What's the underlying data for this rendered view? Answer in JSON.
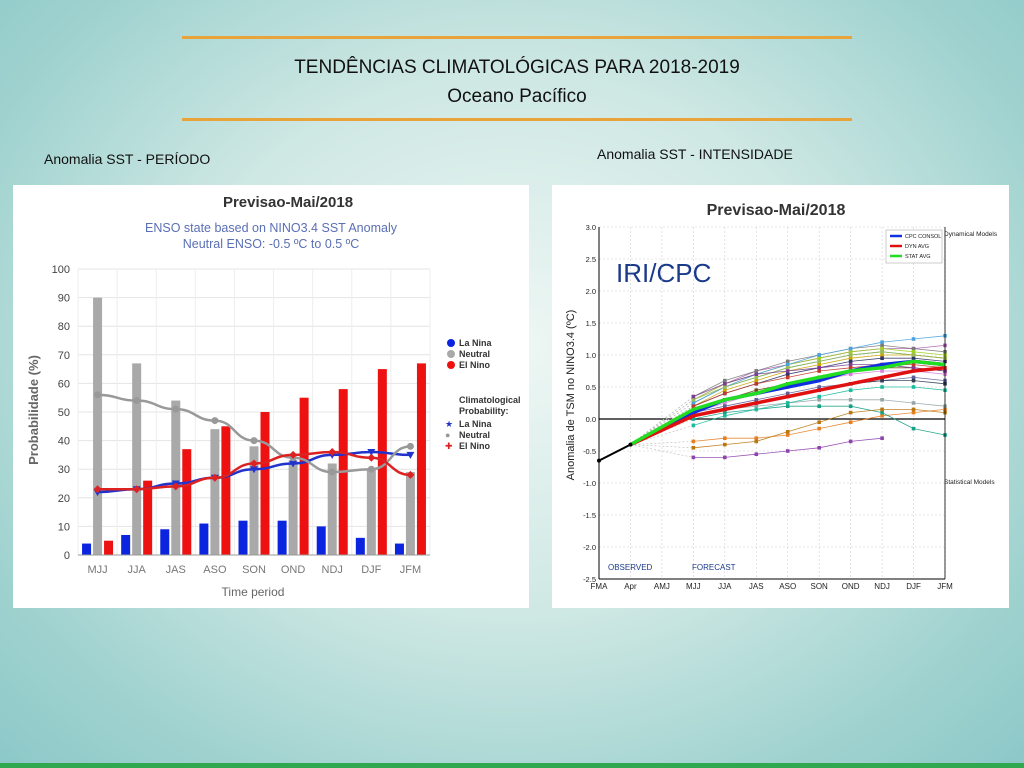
{
  "slide": {
    "title": "TENDÊNCIAS CLIMATOLÓGICAS PARA 2018-2019",
    "subtitle": "Oceano Pacífico",
    "left_caption": "Anomalia SST - PERÍODO",
    "right_caption": "Anomalia SST - INTENSIDADE"
  },
  "colors": {
    "rule": "#e8a33a",
    "la_nina": "#0b24e0",
    "neutral": "#a9a9a9",
    "el_nino": "#ee1111"
  },
  "chart_data": [
    {
      "type": "bar",
      "title": "Previsao-Mai/2018",
      "subtitle": "ENSO state based on NINO3.4 SST Anomaly",
      "subtitle2": "Neutral ENSO: -0.5 ºC to 0.5 ºC",
      "xlabel": "Time period",
      "ylabel": "Probabilidade (%)",
      "ylim": [
        0,
        100
      ],
      "yticks": [
        0,
        10,
        20,
        30,
        40,
        50,
        60,
        70,
        80,
        90,
        100
      ],
      "grid": true,
      "legend_position": "right",
      "categories": [
        "MJJ",
        "JJA",
        "JAS",
        "ASO",
        "SON",
        "OND",
        "NDJ",
        "DJF",
        "JFM"
      ],
      "series": [
        {
          "name": "La Nina",
          "values": [
            4,
            7,
            9,
            11,
            12,
            12,
            10,
            6,
            4
          ]
        },
        {
          "name": "Neutral",
          "values": [
            90,
            67,
            54,
            44,
            38,
            33,
            32,
            30,
            29
          ]
        },
        {
          "name": "El Nino",
          "values": [
            5,
            26,
            37,
            45,
            50,
            55,
            58,
            65,
            67
          ]
        }
      ],
      "legend_title": "Climatological Probability:",
      "climatology": [
        {
          "name": "La Nina",
          "values": [
            22,
            23,
            25,
            27,
            30,
            32,
            35,
            36,
            35
          ]
        },
        {
          "name": "Neutral",
          "values": [
            56,
            54,
            51,
            47,
            40,
            34,
            29,
            30,
            38
          ]
        },
        {
          "name": "El Nino",
          "values": [
            23,
            23,
            24,
            27,
            32,
            35,
            36,
            34,
            28
          ]
        }
      ]
    },
    {
      "type": "line",
      "title": "Previsao-Mai/2018",
      "watermark": "IRI/CPC",
      "ylabel": "Anomalia de TSM no NINO3.4 (ºC)",
      "ylim": [
        -2.5,
        3.0
      ],
      "yticks": [
        "3.0",
        "2.5",
        "2.0",
        "1.5",
        "1.0",
        "0.5",
        "0.0",
        "-0.5",
        "-1.0",
        "-1.5",
        "-2.0",
        "-2.5"
      ],
      "x": [
        "FMA",
        "Apr",
        "AMJ",
        "MJJ",
        "JJA",
        "JAS",
        "ASO",
        "SON",
        "OND",
        "NDJ",
        "DJF",
        "JFM"
      ],
      "observed_label": "OBSERVED",
      "forecast_label": "FORECAST",
      "legend_position": "right",
      "dynamical_header": "Dynamical Models",
      "statistical_header": "Statistical Models",
      "observed": [
        -0.65,
        -0.4
      ],
      "series": [
        {
          "name": "CPC CONSOL",
          "color": "#1030e0",
          "values": [
            null,
            -0.4,
            null,
            0.1,
            0.3,
            0.4,
            0.5,
            0.6,
            0.75,
            0.85,
            0.9,
            0.85
          ]
        },
        {
          "name": "DYN AVG",
          "color": "#e01010",
          "values": [
            null,
            -0.4,
            null,
            0.05,
            0.15,
            0.25,
            0.35,
            0.45,
            0.55,
            0.65,
            0.75,
            0.8
          ]
        },
        {
          "name": "STAT AVG",
          "color": "#22dd22",
          "values": [
            null,
            -0.4,
            null,
            0.15,
            0.3,
            0.4,
            0.55,
            0.65,
            0.75,
            0.8,
            0.9,
            0.85
          ]
        }
      ],
      "models": [
        {
          "color": "#b05cb0",
          "values": [
            0.3,
            0.55,
            0.75,
            0.85,
            0.95,
            1.05,
            1.1,
            1.1,
            1.15
          ]
        },
        {
          "color": "#2e8b57",
          "values": [
            0.25,
            0.5,
            0.65,
            0.8,
            0.9,
            1.0,
            1.05,
            1.0,
            0.95
          ]
        },
        {
          "color": "#caa400",
          "values": [
            0.2,
            0.45,
            0.6,
            0.75,
            0.85,
            0.95,
            1.0,
            1.0,
            0.95
          ]
        },
        {
          "color": "#7a7a7a",
          "values": [
            0.35,
            0.6,
            0.75,
            0.9,
            1.0,
            1.1,
            1.15,
            1.1,
            1.05
          ]
        },
        {
          "color": "#333366",
          "values": [
            0.2,
            0.4,
            0.55,
            0.7,
            0.8,
            0.9,
            0.95,
            0.95,
            0.9
          ]
        },
        {
          "color": "#a0d020",
          "values": [
            0.3,
            0.55,
            0.7,
            0.85,
            0.95,
            1.05,
            1.1,
            1.05,
            1.0
          ]
        },
        {
          "color": "#6b4a1a",
          "values": [
            0.15,
            0.3,
            0.45,
            0.55,
            0.65,
            0.75,
            0.8,
            0.8,
            0.75
          ]
        },
        {
          "color": "#4aa3df",
          "values": [
            0.25,
            0.5,
            0.7,
            0.85,
            1.0,
            1.1,
            1.2,
            1.25,
            1.3
          ]
        },
        {
          "color": "#d982d9",
          "values": [
            0.1,
            0.25,
            0.4,
            0.5,
            0.6,
            0.7,
            0.75,
            0.75,
            0.7
          ]
        },
        {
          "color": "#5e5e9c",
          "values": [
            0.1,
            0.2,
            0.3,
            0.4,
            0.5,
            0.55,
            0.6,
            0.65,
            0.6
          ]
        },
        {
          "color": "#9bbb59",
          "values": [
            0.3,
            0.5,
            0.65,
            0.8,
            0.9,
            1.0,
            1.05,
            1.0,
            0.95
          ]
        },
        {
          "color": "#8e44ad",
          "values": [
            -0.6,
            -0.6,
            -0.55,
            -0.5,
            -0.45,
            -0.35,
            -0.3,
            null,
            null
          ]
        },
        {
          "color": "#e67e22",
          "values": [
            -0.35,
            -0.3,
            -0.3,
            -0.25,
            -0.15,
            -0.05,
            0.05,
            0.1,
            0.15
          ]
        },
        {
          "color": "#16a085",
          "values": [
            0.0,
            0.1,
            0.15,
            0.2,
            0.2,
            0.2,
            0.1,
            -0.15,
            -0.25
          ]
        },
        {
          "color": "#95a5a6",
          "values": [
            0.05,
            0.15,
            0.2,
            0.25,
            0.3,
            0.3,
            0.3,
            0.25,
            0.2
          ]
        },
        {
          "color": "#b9770e",
          "values": [
            -0.45,
            -0.4,
            -0.35,
            -0.2,
            -0.05,
            0.1,
            0.15,
            0.15,
            0.1
          ]
        },
        {
          "color": "#7d3c98",
          "values": [
            0.35,
            0.55,
            0.7,
            0.75,
            0.8,
            0.85,
            0.85,
            0.8,
            0.75
          ]
        },
        {
          "color": "#1abc9c",
          "values": [
            -0.1,
            0.05,
            0.15,
            0.25,
            0.35,
            0.45,
            0.5,
            0.5,
            0.45
          ]
        },
        {
          "color": "#c0392b",
          "values": [
            0.2,
            0.4,
            0.55,
            0.65,
            0.75,
            0.8,
            0.85,
            0.85,
            0.8
          ]
        },
        {
          "color": "#2c3e50",
          "values": [
            0.05,
            0.15,
            0.25,
            0.35,
            0.45,
            0.55,
            0.6,
            0.6,
            0.55
          ]
        }
      ]
    }
  ]
}
